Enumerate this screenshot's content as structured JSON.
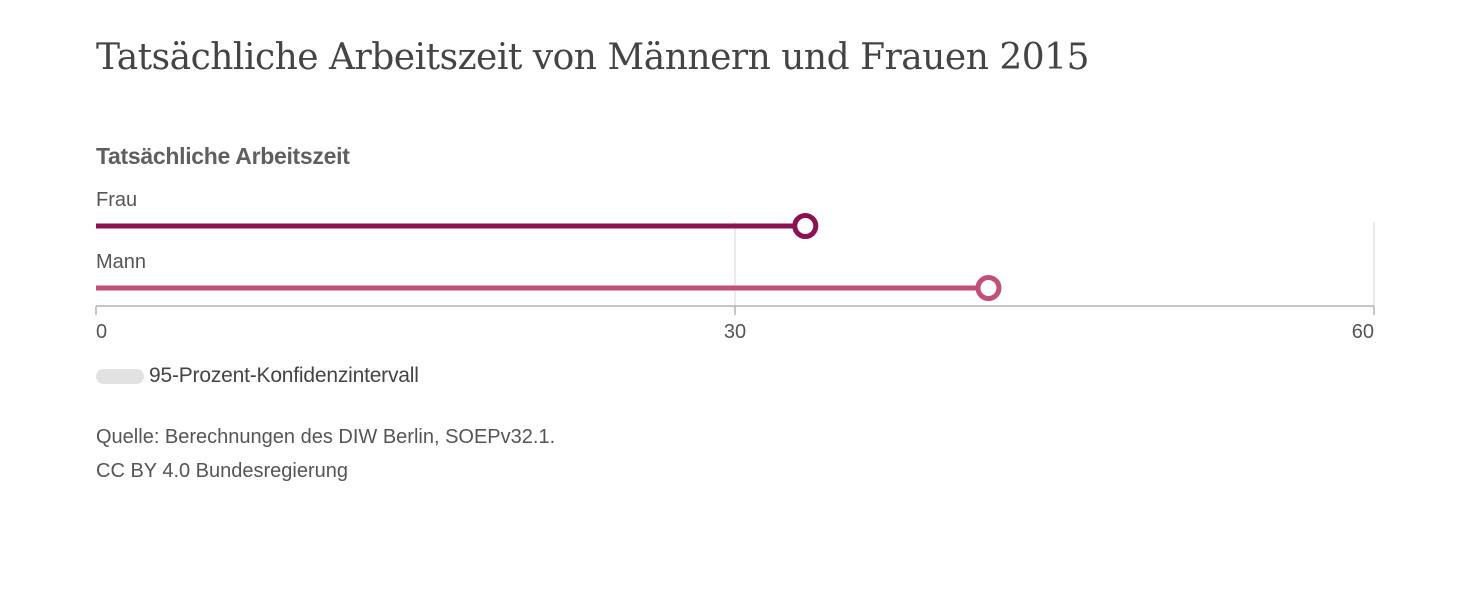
{
  "title": "Tatsächliche Arbeitszeit von Männern und Frauen 2015",
  "chart_heading": "Tatsächliche Arbeitszeit",
  "legend": {
    "label": "95-Prozent-Konfidenzintervall",
    "color": "#e2e2e2"
  },
  "source": {
    "line1": "Quelle: Berechnungen des DIW Berlin, SOEPv32.1.",
    "line2": "CC BY 4.0 Bundesregierung"
  },
  "chart_data": {
    "type": "bar",
    "title": "Tatsächliche Arbeitszeit",
    "categories": [
      "Frau",
      "Mann"
    ],
    "values": [
      33.3,
      41.9
    ],
    "colors": [
      "#8c1150",
      "#c24f79"
    ],
    "xlim": [
      0,
      60
    ],
    "xticks": [
      0,
      30,
      60
    ],
    "tick_labels": [
      "0",
      "30",
      "60"
    ],
    "grid": true,
    "orientation": "horizontal",
    "marker": "circle",
    "legend_position": "bottom-left"
  }
}
